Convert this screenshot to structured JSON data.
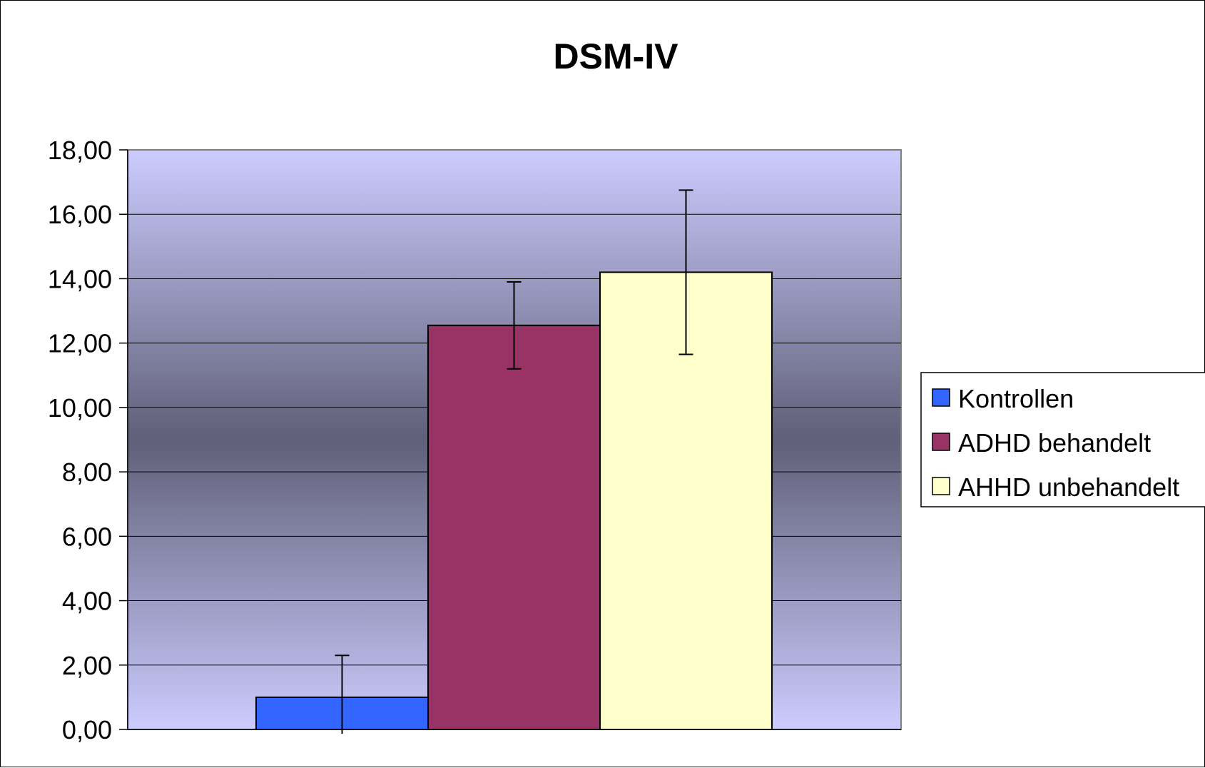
{
  "chart_data": {
    "type": "bar",
    "title": "DSM-IV",
    "xlabel": "",
    "ylabel": "",
    "ylim": [
      0,
      18
    ],
    "yticks": [
      "0,00",
      "2,00",
      "4,00",
      "6,00",
      "8,00",
      "10,00",
      "12,00",
      "14,00",
      "16,00",
      "18,00"
    ],
    "grid": true,
    "legend_position": "right",
    "series": [
      {
        "name": "Kontrollen",
        "value": 1.0,
        "error": 1.3,
        "color": "#3366FF"
      },
      {
        "name": "ADHD behandelt",
        "value": 12.55,
        "error": 1.35,
        "color": "#993366"
      },
      {
        "name": "AHHD unbehandelt",
        "value": 14.2,
        "error": 2.55,
        "color": "#FFFFCC"
      }
    ],
    "plot_background": {
      "edge": "#CCCCFF",
      "center": "#5F5F78"
    }
  }
}
